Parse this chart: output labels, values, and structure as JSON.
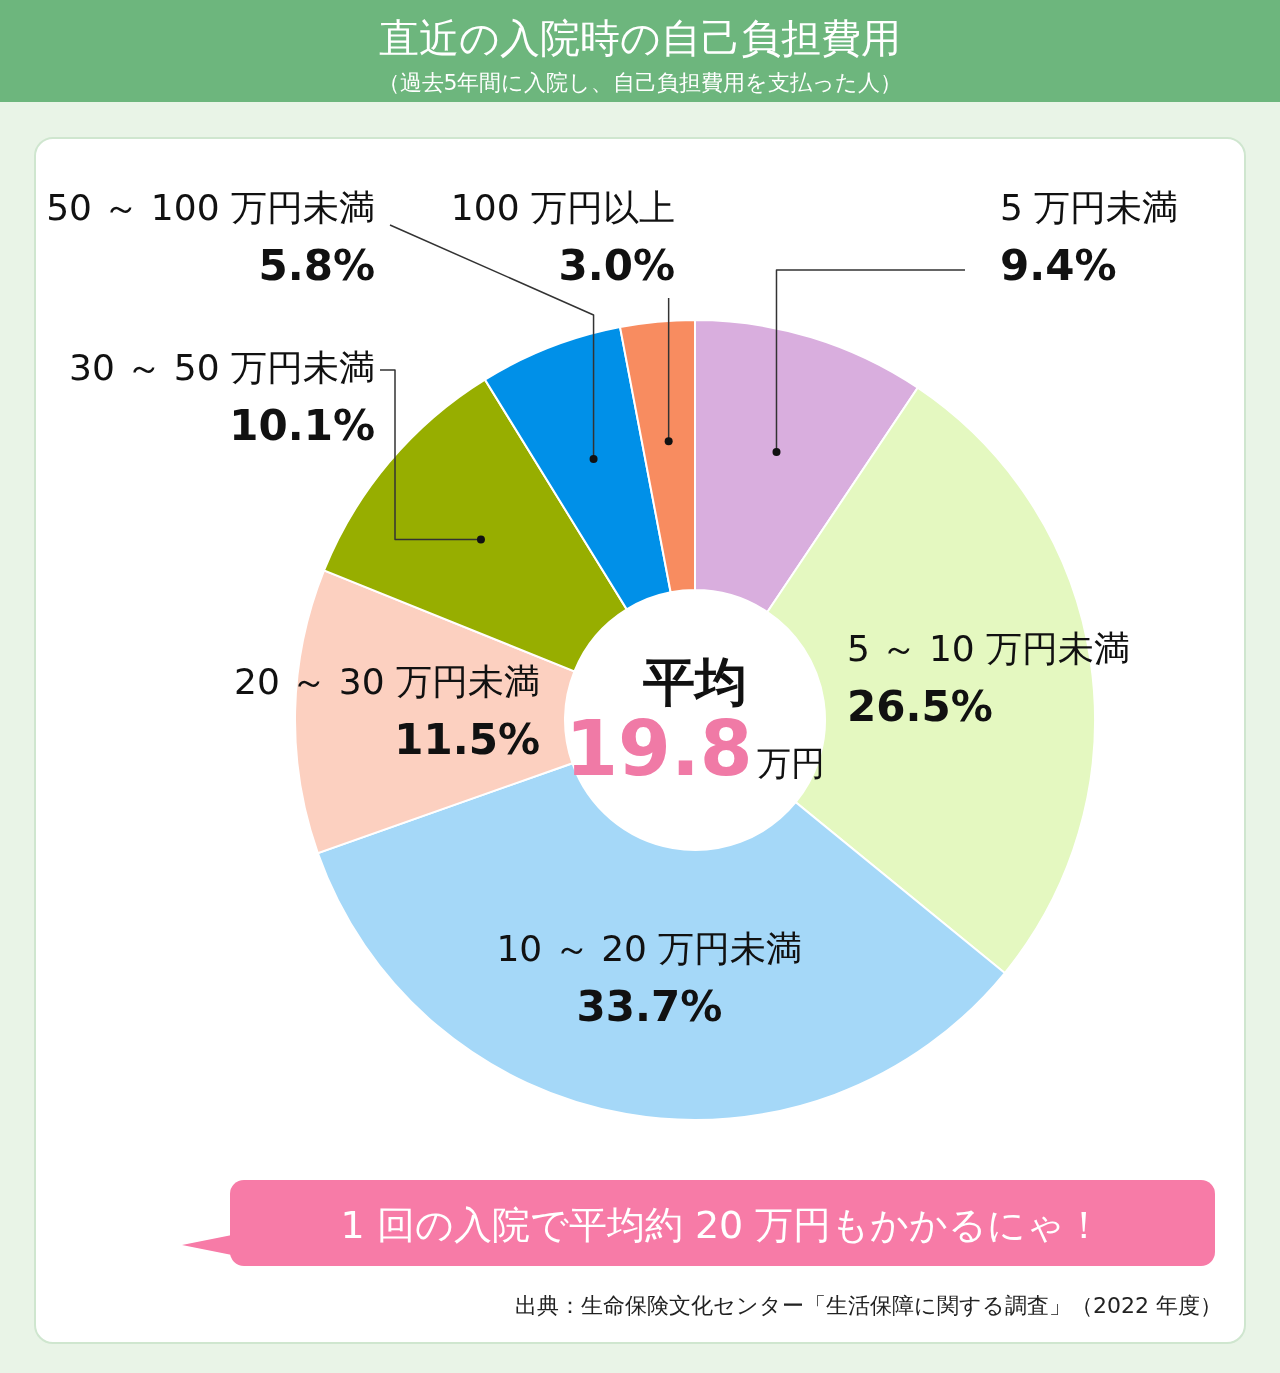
{
  "chart_data": {
    "type": "donut",
    "title": "直近の入院時の自己負担費用",
    "subtitle": "（過去5年間に入院し、自己負担費用を支払った人）",
    "categories": [
      "5 万円未満",
      "5 ～ 10 万円未満",
      "10 ～ 20 万円未満",
      "20 ～ 30 万円未満",
      "30 ～ 50 万円未満",
      "50 ～ 100 万円未満",
      "100 万円以上"
    ],
    "values": [
      9.4,
      26.5,
      33.7,
      11.5,
      10.1,
      5.8,
      3.0
    ],
    "value_labels": [
      "9.4%",
      "26.5%",
      "33.7%",
      "11.5%",
      "10.1%",
      "5.8%",
      "3.0%"
    ],
    "colors": [
      "#d9aede",
      "#e4f8c0",
      "#a5d8f8",
      "#fcd0c0",
      "#97ae00",
      "#0090e8",
      "#f88c60"
    ],
    "annotations": [
      "平均",
      "19.8万円",
      "1 回の入院で平均約 20 万円もかかるにゃ！",
      "出典：生命保険文化センター「生活保障に関する調査」（2022 年度）"
    ]
  }
}
